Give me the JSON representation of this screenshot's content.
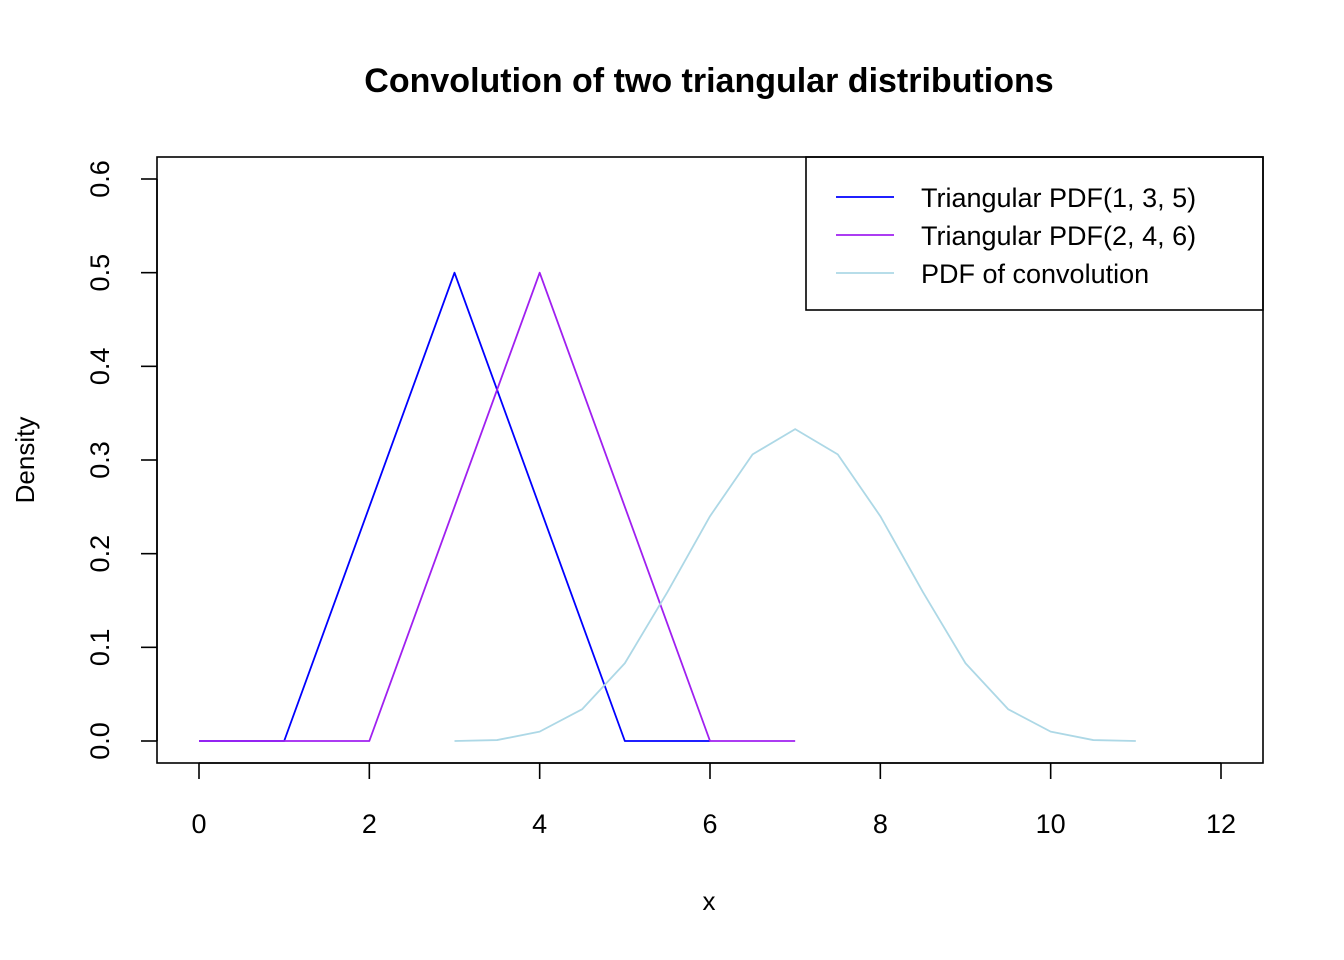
{
  "chart_data": {
    "type": "line",
    "title": "Convolution of two triangular distributions",
    "xlabel": "x",
    "ylabel": "Density",
    "xlim": [
      0,
      12
    ],
    "ylim": [
      0,
      0.6
    ],
    "x_ticks": [
      "0",
      "2",
      "4",
      "6",
      "8",
      "10",
      "12"
    ],
    "y_ticks": [
      "0.0",
      "0.1",
      "0.2",
      "0.3",
      "0.4",
      "0.5",
      "0.6"
    ],
    "grid": false,
    "legend_position": "top-right",
    "series": [
      {
        "name": "Triangular PDF(1, 3, 5)",
        "color": "#0000ff",
        "x": [
          0,
          1,
          3,
          5,
          6
        ],
        "y": [
          0,
          0,
          0.5,
          0,
          0
        ]
      },
      {
        "name": "Triangular PDF(2, 4, 6)",
        "color": "#a020f0",
        "x": [
          0,
          2,
          4,
          6,
          7
        ],
        "y": [
          0,
          0,
          0.5,
          0,
          0
        ]
      },
      {
        "name": "PDF of convolution",
        "color": "#add8e6",
        "x": [
          3,
          3.5,
          4,
          4.5,
          5,
          5.5,
          6,
          6.5,
          7,
          7.5,
          8,
          8.5,
          9,
          9.5,
          10,
          10.5,
          11
        ],
        "y": [
          0,
          0.001,
          0.01,
          0.034,
          0.083,
          0.159,
          0.24,
          0.306,
          0.333,
          0.306,
          0.24,
          0.159,
          0.083,
          0.034,
          0.01,
          0.001,
          0
        ]
      }
    ]
  }
}
